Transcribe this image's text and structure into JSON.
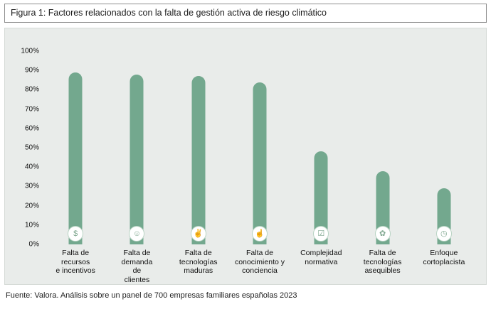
{
  "title": "Figura 1: Factores relacionados con la falta de gestión activa de riesgo climático",
  "source": "Fuente: Valora. Análisis sobre un panel de 700 empresas familiares españolas 2023",
  "colors": {
    "bar": "#73a88e",
    "panel": "#e9ecea",
    "circle_ring": "#b9d4c4"
  },
  "chart_data": {
    "type": "bar",
    "title": "Factores relacionados con la falta de gestión activa de riesgo climático",
    "categories": [
      "Falta de\nrecursos\ne incentivos",
      "Falta de\ndemanda\nde\nclientes",
      "Falta de\ntecnologías\nmaduras",
      "Falta de\nconocimiento y\nconciencia",
      "Complejidad\nnormativa",
      "Falta de\ntecnologías\nasequibles",
      "Enfoque\ncortoplacista"
    ],
    "values": [
      89,
      88,
      87,
      84,
      48,
      38,
      29
    ],
    "ylim": [
      0,
      100
    ],
    "ytick_step": 10,
    "ytick_suffix": "%",
    "xlabel": "",
    "ylabel": "",
    "grid": false,
    "legend": "none",
    "icons": [
      {
        "name": "coins-icon",
        "glyph": "$"
      },
      {
        "name": "clients-group-icon",
        "glyph": "☺"
      },
      {
        "name": "hand-technology-icon",
        "glyph": "✌"
      },
      {
        "name": "awareness-icon",
        "glyph": "☝"
      },
      {
        "name": "checklist-icon",
        "glyph": "☑"
      },
      {
        "name": "affordable-tech-icon",
        "glyph": "✿"
      },
      {
        "name": "clock-icon",
        "glyph": "◷"
      }
    ]
  }
}
